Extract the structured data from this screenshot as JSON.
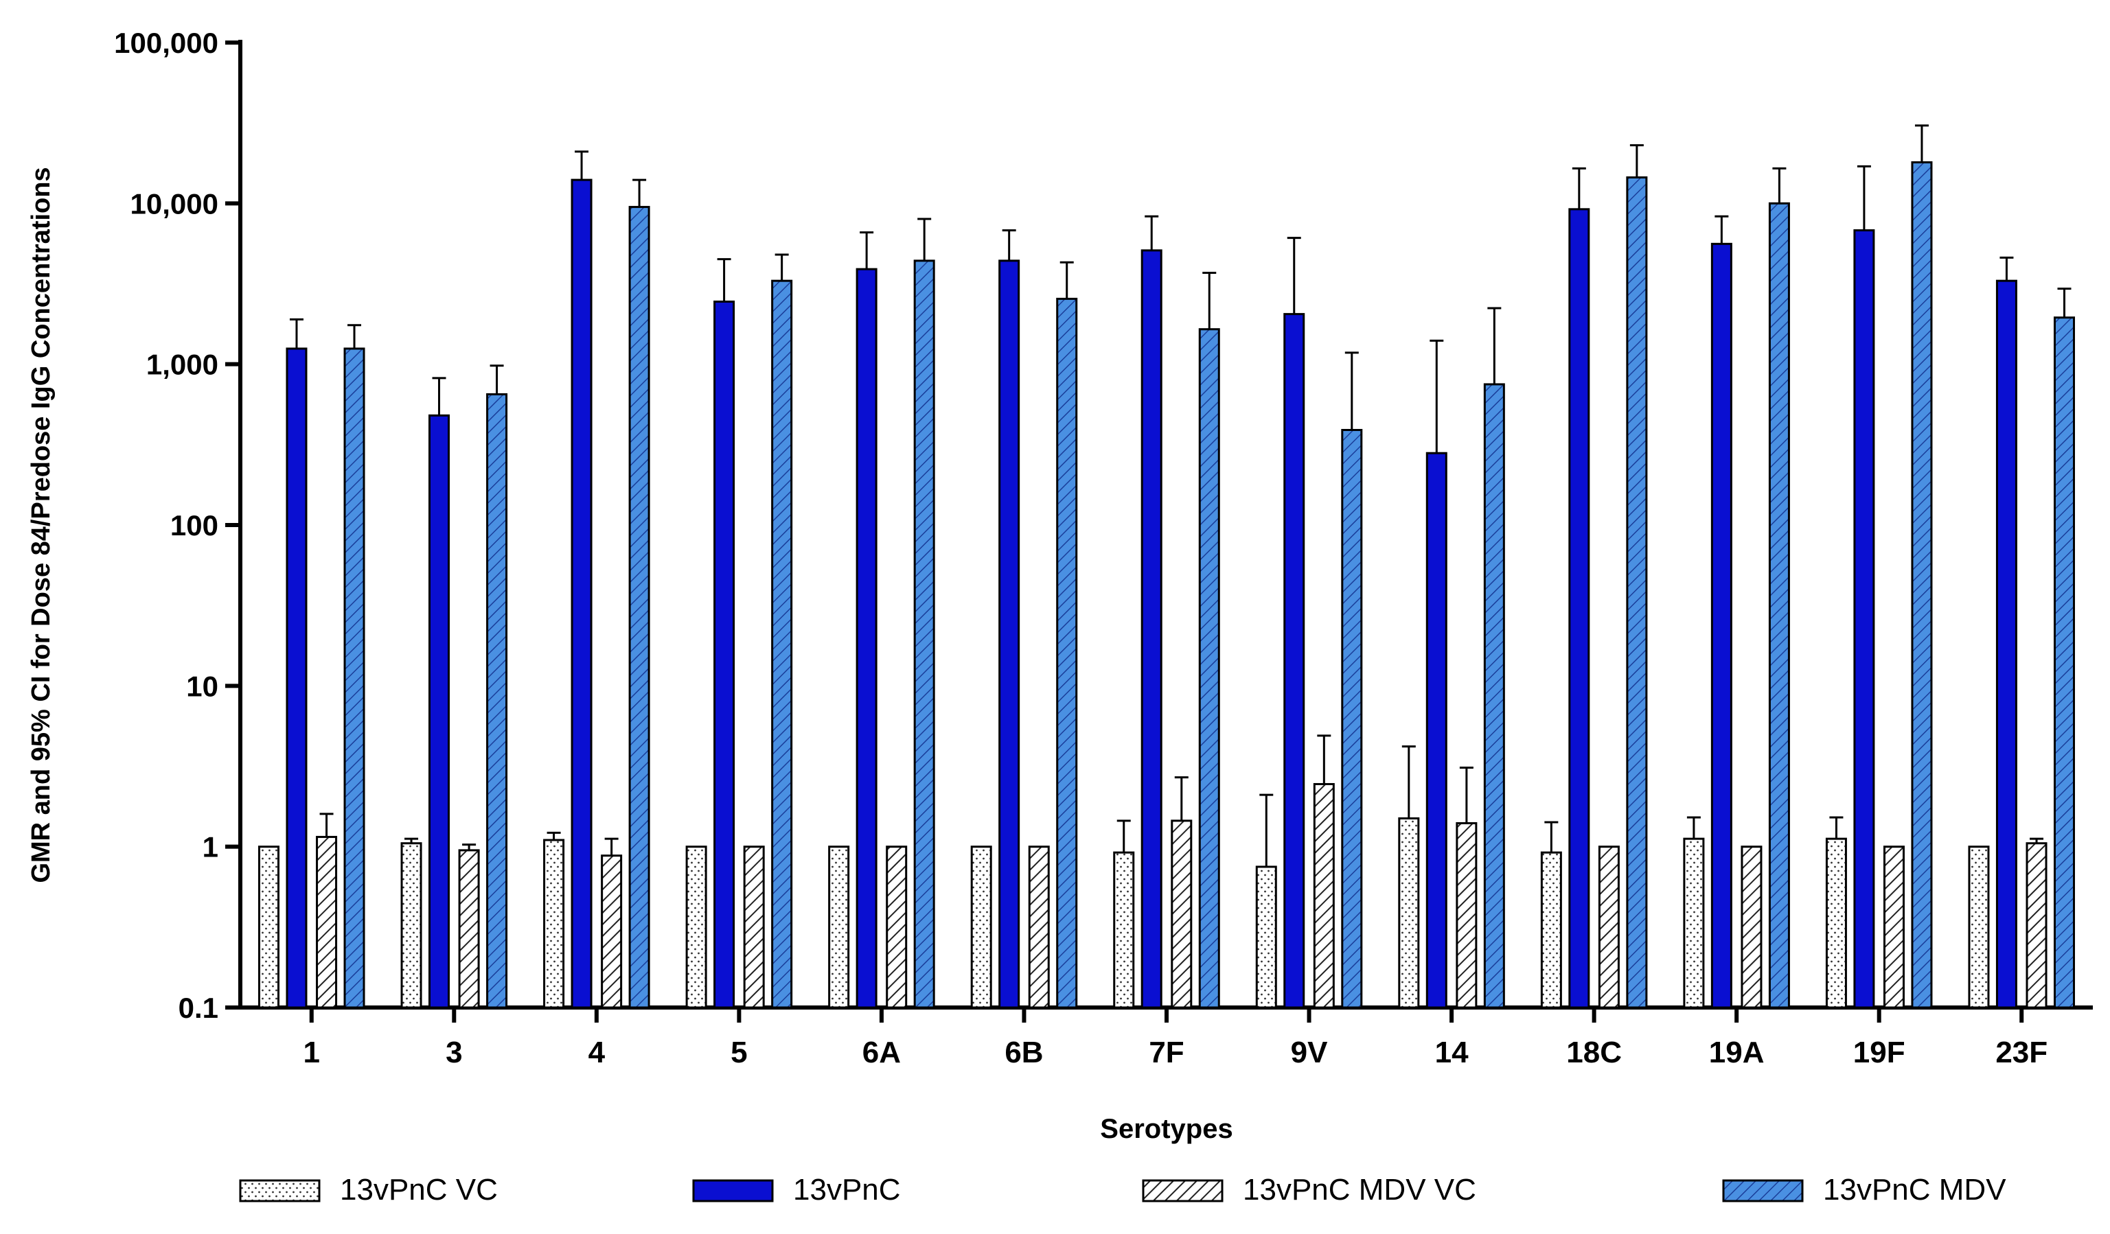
{
  "chart_data": {
    "type": "bar",
    "scale": "log",
    "title": "",
    "xlabel": "Serotypes",
    "ylabel": "GMR and 95% CI for Dose 84/Predose  IgG Concentrations",
    "ylim": [
      0.1,
      100000
    ],
    "yticks": [
      {
        "value": 0.1,
        "label": "0.1"
      },
      {
        "value": 1,
        "label": "1"
      },
      {
        "value": 10,
        "label": "10"
      },
      {
        "value": 100,
        "label": "100"
      },
      {
        "value": 1000,
        "label": "1,000"
      },
      {
        "value": 10000,
        "label": "10,000"
      },
      {
        "value": 100000,
        "label": "100,000"
      }
    ],
    "categories": [
      "1",
      "3",
      "4",
      "5",
      "6A",
      "6B",
      "7F",
      "9V",
      "14",
      "18C",
      "19A",
      "19F",
      "23F"
    ],
    "legend_position": "bottom",
    "series": [
      {
        "name": "13vPnC VC",
        "fill": "#ffffff",
        "pattern": "dots",
        "values": [
          1.0,
          1.05,
          1.1,
          1.0,
          1.0,
          1.0,
          0.92,
          0.75,
          1.5,
          0.92,
          1.12,
          1.12,
          1.0
        ],
        "upper": [
          null,
          1.12,
          1.22,
          null,
          null,
          null,
          1.45,
          2.1,
          4.2,
          1.42,
          1.52,
          1.52,
          null
        ]
      },
      {
        "name": "13vPnC",
        "fill": "#0a0fd1",
        "pattern": "solid",
        "values": [
          1250,
          480,
          14000,
          2450,
          3900,
          4400,
          5100,
          2050,
          280,
          9200,
          5600,
          6800,
          3300
        ],
        "upper": [
          1900,
          820,
          21000,
          4500,
          6600,
          6800,
          8300,
          6100,
          1400,
          16500,
          8300,
          17000,
          4600
        ]
      },
      {
        "name": "13vPnC MDV VC",
        "fill": "#ffffff",
        "pattern": "hatch",
        "values": [
          1.15,
          0.95,
          0.88,
          1.0,
          1.0,
          1.0,
          1.45,
          2.45,
          1.4,
          1.0,
          1.0,
          1.0,
          1.05
        ],
        "upper": [
          1.6,
          1.03,
          1.12,
          null,
          null,
          null,
          2.7,
          4.9,
          3.1,
          null,
          null,
          null,
          1.12
        ]
      },
      {
        "name": "13vPnC MDV",
        "fill": "#4a90e2",
        "pattern": "blue-hatch",
        "values": [
          1250,
          650,
          9500,
          3300,
          4400,
          2550,
          1650,
          390,
          750,
          14500,
          10000,
          18000,
          1950
        ],
        "upper": [
          1750,
          980,
          14000,
          4800,
          8000,
          4300,
          3700,
          1180,
          2230,
          23000,
          16500,
          30500,
          2950
        ]
      }
    ]
  }
}
